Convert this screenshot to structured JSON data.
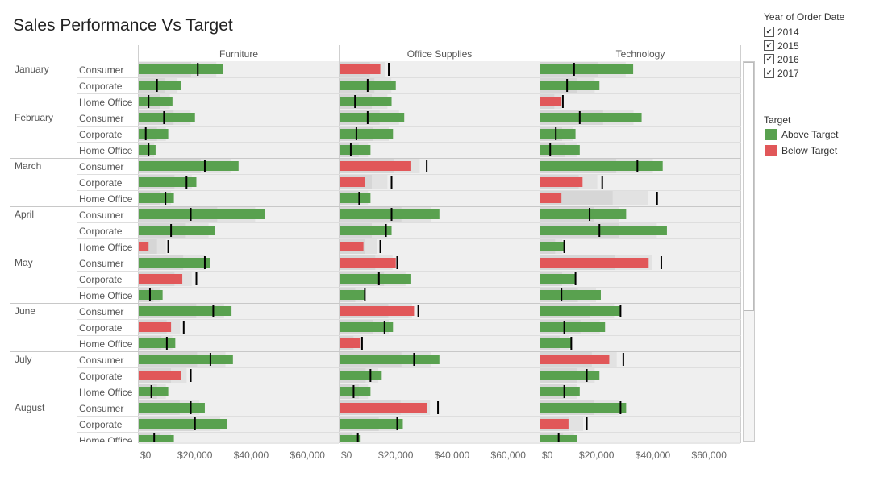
{
  "title": "Sales Performance Vs Target",
  "filter": {
    "title": "Year of Order Date",
    "options": [
      {
        "label": "2014",
        "checked": true
      },
      {
        "label": "2015",
        "checked": true
      },
      {
        "label": "2016",
        "checked": true
      },
      {
        "label": "2017",
        "checked": true
      }
    ],
    "check_glyph": "✔"
  },
  "legend": {
    "title": "Target",
    "items": [
      {
        "label": "Above Target",
        "color": "#59a14f"
      },
      {
        "label": "Below Target",
        "color": "#e15759"
      }
    ]
  },
  "chart_data": {
    "type": "bar",
    "columns": [
      "Furniture",
      "Office Supplies",
      "Technology"
    ],
    "months": [
      "January",
      "February",
      "March",
      "April",
      "May",
      "June",
      "July",
      "August"
    ],
    "segments": [
      "Consumer",
      "Corporate",
      "Home Office"
    ],
    "x_ticks": [
      "$0",
      "$20,000",
      "$40,000",
      "$60,000"
    ],
    "xlim": [
      0,
      70000
    ],
    "colors": {
      "above": "#59a14f",
      "below": "#e15759",
      "target_line": "#000000"
    },
    "rows": [
      {
        "month": "January",
        "segment": "Consumer",
        "actual": [
          30000,
          14500,
          33000
        ],
        "target": [
          21000,
          17500,
          12000
        ]
      },
      {
        "month": "January",
        "segment": "Corporate",
        "actual": [
          15000,
          20000,
          21000
        ],
        "target": [
          6500,
          10000,
          9500
        ]
      },
      {
        "month": "January",
        "segment": "Home Office",
        "actual": [
          12000,
          18500,
          7500
        ],
        "target": [
          3500,
          5500,
          8000
        ]
      },
      {
        "month": "February",
        "segment": "Consumer",
        "actual": [
          20000,
          23000,
          36000
        ],
        "target": [
          9000,
          10000,
          14000
        ]
      },
      {
        "month": "February",
        "segment": "Corporate",
        "actual": [
          10500,
          19000,
          12500
        ],
        "target": [
          2500,
          6000,
          5500
        ]
      },
      {
        "month": "February",
        "segment": "Home Office",
        "actual": [
          6000,
          11000,
          14000
        ],
        "target": [
          3500,
          4000,
          3500
        ]
      },
      {
        "month": "March",
        "segment": "Consumer",
        "actual": [
          35500,
          25500,
          43500
        ],
        "target": [
          23500,
          31000,
          34500
        ]
      },
      {
        "month": "March",
        "segment": "Corporate",
        "actual": [
          20500,
          9000,
          15000
        ],
        "target": [
          17000,
          18500,
          22000
        ]
      },
      {
        "month": "March",
        "segment": "Home Office",
        "actual": [
          12500,
          11000,
          7500
        ],
        "target": [
          9500,
          7000,
          41500
        ]
      },
      {
        "month": "April",
        "segment": "Consumer",
        "actual": [
          45000,
          35500,
          30500
        ],
        "target": [
          18500,
          18500,
          17500
        ]
      },
      {
        "month": "April",
        "segment": "Corporate",
        "actual": [
          27000,
          18500,
          45000
        ],
        "target": [
          11500,
          16500,
          21000
        ]
      },
      {
        "month": "April",
        "segment": "Home Office",
        "actual": [
          3500,
          8500,
          8500
        ],
        "target": [
          10500,
          14500,
          8500
        ]
      },
      {
        "month": "May",
        "segment": "Consumer",
        "actual": [
          25500,
          20000,
          38500
        ],
        "target": [
          23500,
          20500,
          43000
        ]
      },
      {
        "month": "May",
        "segment": "Corporate",
        "actual": [
          15500,
          25500,
          12500
        ],
        "target": [
          20500,
          14000,
          12500
        ]
      },
      {
        "month": "May",
        "segment": "Home Office",
        "actual": [
          8500,
          9000,
          21500
        ],
        "target": [
          4000,
          9000,
          7500
        ]
      },
      {
        "month": "June",
        "segment": "Consumer",
        "actual": [
          33000,
          26500,
          28500
        ],
        "target": [
          26500,
          28000,
          28500
        ]
      },
      {
        "month": "June",
        "segment": "Corporate",
        "actual": [
          11500,
          19000,
          23000
        ],
        "target": [
          16000,
          16000,
          8500
        ]
      },
      {
        "month": "June",
        "segment": "Home Office",
        "actual": [
          13000,
          7500,
          11000
        ],
        "target": [
          10000,
          8000,
          11000
        ]
      },
      {
        "month": "July",
        "segment": "Consumer",
        "actual": [
          33500,
          35500,
          24500
        ],
        "target": [
          25500,
          26500,
          29500
        ]
      },
      {
        "month": "July",
        "segment": "Corporate",
        "actual": [
          15000,
          15000,
          21000
        ],
        "target": [
          18500,
          11000,
          16500
        ]
      },
      {
        "month": "July",
        "segment": "Home Office",
        "actual": [
          10500,
          11000,
          14000
        ],
        "target": [
          4500,
          5000,
          8500
        ]
      },
      {
        "month": "August",
        "segment": "Consumer",
        "actual": [
          23500,
          31000,
          30500
        ],
        "target": [
          18500,
          35000,
          28500
        ]
      },
      {
        "month": "August",
        "segment": "Corporate",
        "actual": [
          31500,
          22500,
          10000
        ],
        "target": [
          20000,
          20500,
          16500
        ]
      },
      {
        "month": "August",
        "segment": "Home Office",
        "actual": [
          12500,
          7500,
          13000
        ],
        "target": [
          5500,
          6500,
          6500
        ]
      }
    ]
  }
}
